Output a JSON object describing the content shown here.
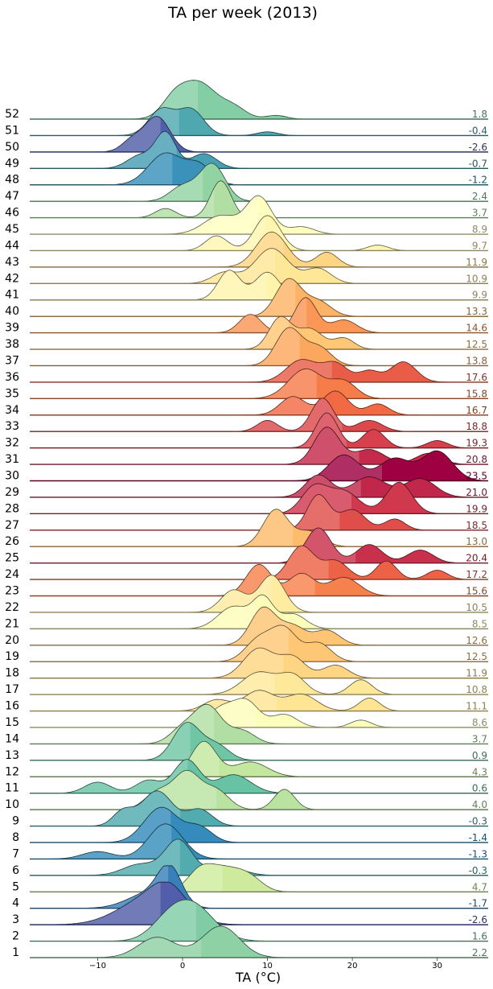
{
  "chart_data": {
    "type": "ridgeline",
    "title": "TA per week (2013)",
    "xlabel": "TA (°C)",
    "ylabel": "",
    "xlim": [
      -18,
      36
    ],
    "xticks": [
      -10,
      0,
      10,
      20,
      30
    ],
    "grid": false,
    "legend": "none",
    "colormap": "spectral-like (cold=purple/blue, warm=red)",
    "weeks": [
      {
        "week": "1",
        "mean": "2.2",
        "peaks": [
          [
            -3,
            0.55,
            2.2
          ],
          [
            4.5,
            0.85,
            2.2
          ]
        ]
      },
      {
        "week": "2",
        "mean": "1.6",
        "peaks": [
          [
            1,
            1.0,
            2.6
          ],
          [
            -2,
            0.3,
            2
          ]
        ]
      },
      {
        "week": "3",
        "mean": "-2.6",
        "peaks": [
          [
            -4,
            0.7,
            3.5
          ],
          [
            -1.5,
            0.6,
            2
          ]
        ]
      },
      {
        "week": "4",
        "mean": "-1.7",
        "peaks": [
          [
            -1.5,
            0.95,
            1.4
          ],
          [
            -4,
            0.4,
            2.5
          ]
        ]
      },
      {
        "week": "5",
        "mean": "4.7",
        "peaks": [
          [
            2,
            0.5,
            1.5
          ],
          [
            5,
            0.6,
            2
          ],
          [
            8,
            0.3,
            1.5
          ]
        ]
      },
      {
        "week": "6",
        "mean": "-0.3",
        "peaks": [
          [
            -0.5,
            0.95,
            1.6
          ],
          [
            -5,
            0.3,
            2
          ],
          [
            5,
            0.25,
            2
          ]
        ]
      },
      {
        "week": "7",
        "mean": "-1.3",
        "peaks": [
          [
            -2,
            0.95,
            2
          ],
          [
            -10,
            0.2,
            1.8
          ]
        ]
      },
      {
        "week": "8",
        "mean": "-1.4",
        "peaks": [
          [
            -2.5,
            0.95,
            2
          ],
          [
            2,
            0.4,
            1.5
          ]
        ]
      },
      {
        "week": "9",
        "mean": "-0.3",
        "peaks": [
          [
            -3,
            0.95,
            1.8
          ],
          [
            -7,
            0.4,
            1.2
          ],
          [
            2,
            0.45,
            1.5
          ]
        ]
      },
      {
        "week": "10",
        "mean": "4.0",
        "peaks": [
          [
            0.5,
            1.0,
            1.6
          ],
          [
            -3,
            0.45,
            1.5
          ],
          [
            4,
            0.5,
            1.5
          ],
          [
            12,
            0.55,
            1.2
          ]
        ]
      },
      {
        "week": "11",
        "mean": "0.6",
        "peaks": [
          [
            0.5,
            0.9,
            1.5
          ],
          [
            -10,
            0.3,
            1.5
          ],
          [
            -4,
            0.35,
            1.5
          ],
          [
            6,
            0.5,
            2
          ]
        ]
      },
      {
        "week": "12",
        "mean": "4.3",
        "peaks": [
          [
            2.5,
            0.95,
            1.5
          ],
          [
            8,
            0.4,
            2
          ]
        ]
      },
      {
        "week": "13",
        "mean": "0.9",
        "peaks": [
          [
            0.5,
            1.0,
            1.6
          ],
          [
            4,
            0.4,
            1.5
          ]
        ]
      },
      {
        "week": "14",
        "mean": "3.7",
        "peaks": [
          [
            3,
            1.0,
            1.6
          ],
          [
            0,
            0.4,
            1.5
          ],
          [
            7,
            0.35,
            1.5
          ]
        ]
      },
      {
        "week": "15",
        "mean": "8.6",
        "peaks": [
          [
            4.5,
            0.5,
            1.5
          ],
          [
            7.5,
            0.7,
            1.5
          ],
          [
            12,
            0.35,
            1.5
          ],
          [
            21,
            0.2,
            1.2
          ]
        ]
      },
      {
        "week": "16",
        "mean": "11.1",
        "peaks": [
          [
            4,
            0.3,
            1.5
          ],
          [
            9,
            0.55,
            1.8
          ],
          [
            14,
            0.45,
            1.8
          ],
          [
            22,
            0.35,
            1.2
          ]
        ]
      },
      {
        "week": "17",
        "mean": "10.8",
        "peaks": [
          [
            9,
            0.6,
            2
          ],
          [
            13,
            0.5,
            1.5
          ],
          [
            21,
            0.4,
            1.3
          ]
        ]
      },
      {
        "week": "18",
        "mean": "11.9",
        "peaks": [
          [
            9,
            0.8,
            1.8
          ],
          [
            13,
            0.55,
            1.5
          ],
          [
            18,
            0.35,
            1.5
          ]
        ]
      },
      {
        "week": "19",
        "mean": "12.5",
        "peaks": [
          [
            9,
            0.6,
            1.6
          ],
          [
            12,
            0.85,
            1.5
          ],
          [
            16,
            0.5,
            1.5
          ]
        ]
      },
      {
        "week": "20",
        "mean": "12.6",
        "peaks": [
          [
            9.5,
            1.0,
            1.5
          ],
          [
            13,
            0.5,
            1.5
          ],
          [
            17,
            0.4,
            1.5
          ]
        ]
      },
      {
        "week": "21",
        "mean": "8.5",
        "peaks": [
          [
            6,
            0.6,
            1.8
          ],
          [
            9.5,
            0.8,
            1.2
          ],
          [
            13,
            0.4,
            1.5
          ]
        ]
      },
      {
        "week": "22",
        "mean": "10.5",
        "peaks": [
          [
            10.5,
            1.0,
            1.5
          ],
          [
            6,
            0.6,
            1.5
          ]
        ]
      },
      {
        "week": "23",
        "mean": "15.6",
        "peaks": [
          [
            9,
            0.85,
            1.5
          ],
          [
            14,
            0.6,
            1.5
          ],
          [
            19,
            0.5,
            1.8
          ]
        ]
      },
      {
        "week": "24",
        "mean": "17.2",
        "peaks": [
          [
            14,
            0.9,
            1.5
          ],
          [
            18,
            0.5,
            1.5
          ],
          [
            24,
            0.5,
            1.2
          ],
          [
            30,
            0.25,
            1.2
          ]
        ]
      },
      {
        "week": "25",
        "mean": "20.4",
        "peaks": [
          [
            16,
            0.95,
            1.5
          ],
          [
            22,
            0.5,
            1.5
          ],
          [
            28,
            0.35,
            1.5
          ]
        ]
      },
      {
        "week": "26",
        "mean": "13.0",
        "peaks": [
          [
            11,
            1.0,
            1.5
          ],
          [
            15,
            0.4,
            1.5
          ]
        ]
      },
      {
        "week": "27",
        "mean": "18.5",
        "peaks": [
          [
            16,
            0.95,
            1.3
          ],
          [
            20,
            0.55,
            1.5
          ],
          [
            25,
            0.3,
            1.2
          ]
        ]
      },
      {
        "week": "28",
        "mean": "19.9",
        "peaks": [
          [
            15.5,
            0.7,
            1.5
          ],
          [
            19,
            0.6,
            1.8
          ],
          [
            25.5,
            0.85,
            1.5
          ]
        ]
      },
      {
        "week": "29",
        "mean": "21.0",
        "peaks": [
          [
            16,
            0.6,
            1.5
          ],
          [
            22,
            0.55,
            2
          ],
          [
            28,
            0.5,
            1.8
          ]
        ]
      },
      {
        "week": "30",
        "mean": "23.5",
        "peaks": [
          [
            19,
            0.7,
            1.8
          ],
          [
            25,
            0.6,
            1.8
          ],
          [
            30,
            0.8,
            1.8
          ]
        ]
      },
      {
        "week": "31",
        "mean": "20.8",
        "peaks": [
          [
            17,
            1.0,
            1.5
          ],
          [
            22,
            0.4,
            1.8
          ],
          [
            29,
            0.3,
            1.5
          ]
        ]
      },
      {
        "week": "32",
        "mean": "19.3",
        "peaks": [
          [
            17,
            0.95,
            1.3
          ],
          [
            22.5,
            0.5,
            1.3
          ],
          [
            30,
            0.2,
            1.2
          ]
        ]
      },
      {
        "week": "33",
        "mean": "18.8",
        "peaks": [
          [
            16.5,
            0.9,
            1.3
          ],
          [
            10,
            0.3,
            1.2
          ],
          [
            22,
            0.3,
            1.5
          ]
        ]
      },
      {
        "week": "34",
        "mean": "16.7",
        "peaks": [
          [
            13,
            0.5,
            1.5
          ],
          [
            18,
            0.65,
            1.5
          ],
          [
            23,
            0.3,
            1.3
          ]
        ]
      },
      {
        "week": "35",
        "mean": "15.8",
        "peaks": [
          [
            14.5,
            0.8,
            2
          ],
          [
            19,
            0.45,
            1.5
          ]
        ]
      },
      {
        "week": "36",
        "mean": "17.6",
        "peaks": [
          [
            14,
            0.6,
            1.8
          ],
          [
            18,
            0.5,
            1.5
          ],
          [
            26,
            0.55,
            1.5
          ],
          [
            22,
            0.3,
            1.2
          ]
        ]
      },
      {
        "week": "37",
        "mean": "13.8",
        "peaks": [
          [
            12.5,
            1.0,
            1.5
          ],
          [
            16,
            0.5,
            1.5
          ]
        ]
      },
      {
        "week": "38",
        "mean": "12.5",
        "peaks": [
          [
            11.5,
            0.85,
            1.3
          ],
          [
            15,
            0.55,
            1.5
          ],
          [
            19,
            0.3,
            1.2
          ]
        ]
      },
      {
        "week": "39",
        "mean": "14.6",
        "peaks": [
          [
            8,
            0.5,
            1.3
          ],
          [
            14.5,
            0.95,
            1.3
          ],
          [
            19,
            0.35,
            1.5
          ]
        ]
      },
      {
        "week": "40",
        "mean": "13.3",
        "peaks": [
          [
            12.5,
            1.0,
            1.5
          ],
          [
            16,
            0.4,
            1.5
          ]
        ]
      },
      {
        "week": "41",
        "mean": "9.9",
        "peaks": [
          [
            5.5,
            0.8,
            1.3
          ],
          [
            10,
            0.75,
            1.5
          ]
        ]
      },
      {
        "week": "42",
        "mean": "10.9",
        "peaks": [
          [
            10.5,
            0.95,
            2
          ],
          [
            5,
            0.3,
            1.5
          ],
          [
            16,
            0.4,
            1.5
          ]
        ]
      },
      {
        "week": "43",
        "mean": "11.9",
        "peaks": [
          [
            10.5,
            0.95,
            1.8
          ],
          [
            17,
            0.4,
            1.3
          ]
        ]
      },
      {
        "week": "44",
        "mean": "9.7",
        "peaks": [
          [
            10,
            0.95,
            1.5
          ],
          [
            4,
            0.4,
            1.3
          ],
          [
            23,
            0.15,
            1.2
          ]
        ]
      },
      {
        "week": "45",
        "mean": "8.9",
        "peaks": [
          [
            9,
            1.0,
            1.5
          ],
          [
            4.5,
            0.5,
            2
          ],
          [
            14,
            0.2,
            1.5
          ]
        ]
      },
      {
        "week": "46",
        "mean": "3.7",
        "peaks": [
          [
            4.5,
            1.0,
            1.2
          ],
          [
            -2,
            0.25,
            1.2
          ]
        ]
      },
      {
        "week": "47",
        "mean": "2.4",
        "peaks": [
          [
            3.5,
            1.0,
            1.5
          ],
          [
            0,
            0.4,
            1.5
          ]
        ]
      },
      {
        "week": "48",
        "mean": "-1.2",
        "peaks": [
          [
            -2,
            0.85,
            2
          ],
          [
            2,
            0.5,
            1.5
          ]
        ]
      },
      {
        "week": "49",
        "mean": "-0.7",
        "peaks": [
          [
            -2,
            0.95,
            1.2
          ],
          [
            2.5,
            0.4,
            1.5
          ],
          [
            -5,
            0.35,
            1.5
          ]
        ]
      },
      {
        "week": "50",
        "mean": "-2.6",
        "peaks": [
          [
            -3,
            0.95,
            1.5
          ],
          [
            -6,
            0.3,
            1.2
          ]
        ]
      },
      {
        "week": "51",
        "mean": "-0.4",
        "peaks": [
          [
            -2.5,
            0.7,
            1.5
          ],
          [
            1,
            0.7,
            1.5
          ],
          [
            10,
            0.1,
            1.2
          ]
        ]
      },
      {
        "week": "52",
        "mean": "1.8",
        "peaks": [
          [
            2,
            0.95,
            2
          ],
          [
            -1,
            0.5,
            1.5
          ],
          [
            6,
            0.3,
            1.5
          ],
          [
            11,
            0.1,
            1.2
          ]
        ]
      }
    ]
  }
}
